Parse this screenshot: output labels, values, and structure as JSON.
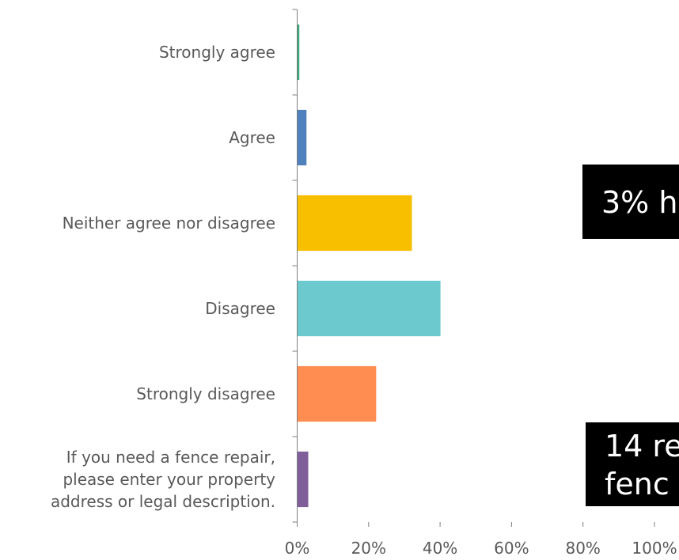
{
  "chart_data": {
    "type": "bar",
    "orientation": "horizontal",
    "categories": [
      "Strongly agree",
      "Agree",
      "Neither agree nor disagree",
      "Disagree",
      "Strongly disagree",
      "If you need a fence repair, please enter your property address or legal description."
    ],
    "category_lines": [
      [
        "Strongly agree"
      ],
      [
        "Agree"
      ],
      [
        "Neither agree nor disagree"
      ],
      [
        "Disagree"
      ],
      [
        "Strongly disagree"
      ],
      [
        "If you need a fence repair,",
        "please enter your property",
        "address or legal description."
      ]
    ],
    "values": [
      0.5,
      2.5,
      32,
      40,
      22,
      3
    ],
    "colors": [
      "#3aaa7a",
      "#4f81bd",
      "#f8bf00",
      "#6cc9cd",
      "#ff8c50",
      "#7f5f9a"
    ],
    "xlim": [
      0,
      100
    ],
    "xticks": [
      "0%",
      "20%",
      "40%",
      "60%",
      "80%",
      "100%"
    ],
    "title": "",
    "xlabel": "",
    "ylabel": "",
    "grid": false,
    "legend": "none"
  },
  "callouts": [
    "3% h",
    "14 re\nfenc"
  ]
}
